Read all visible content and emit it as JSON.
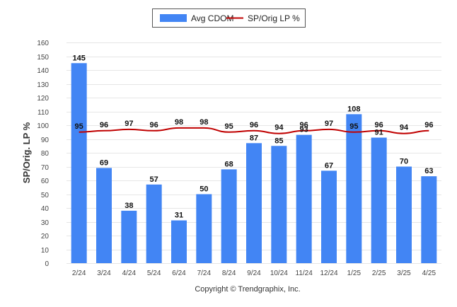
{
  "chart_data": {
    "type": "bar",
    "categories": [
      "2/24",
      "3/24",
      "4/24",
      "5/24",
      "6/24",
      "7/24",
      "8/24",
      "9/24",
      "10/24",
      "11/24",
      "12/24",
      "1/25",
      "2/25",
      "3/25",
      "4/25"
    ],
    "series": [
      {
        "name": "Avg CDOM",
        "type": "bar",
        "color": "#4285f4",
        "values": [
          145,
          69,
          38,
          57,
          31,
          50,
          68,
          87,
          85,
          93,
          67,
          108,
          91,
          70,
          63
        ]
      },
      {
        "name": "SP/Orig LP %",
        "type": "line",
        "color": "#c00000",
        "values": [
          95,
          96,
          97,
          96,
          98,
          98,
          95,
          96,
          94,
          96,
          97,
          95,
          96,
          94,
          96
        ]
      }
    ],
    "ylabel": "SP/Orig. LP %",
    "ylim": [
      0,
      160
    ],
    "yticks": [
      0,
      10,
      20,
      30,
      40,
      50,
      60,
      70,
      80,
      90,
      100,
      110,
      120,
      130,
      140,
      150,
      160
    ],
    "grid": true,
    "legend_position": "top-center"
  },
  "footer": {
    "copyright": "Copyright © Trendgraphix, Inc."
  }
}
